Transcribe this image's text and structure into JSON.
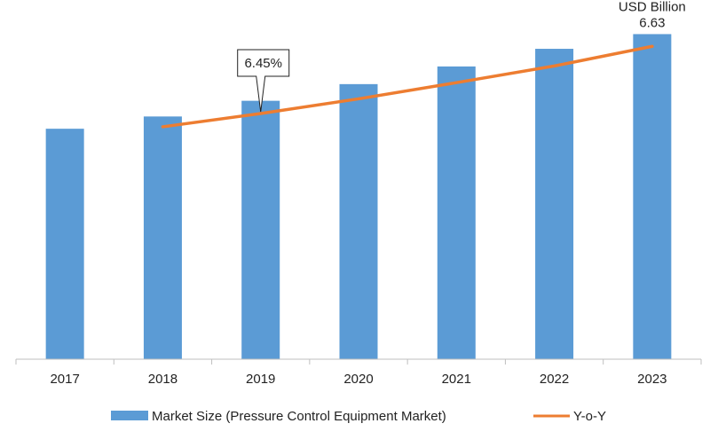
{
  "chart_data": {
    "type": "bar",
    "title": "",
    "xlabel": "",
    "ylabel": "",
    "unit_label": "USD Billion",
    "categories": [
      "2017",
      "2018",
      "2019",
      "2020",
      "2021",
      "2022",
      "2023"
    ],
    "series": [
      {
        "name": "Market Size (Pressure Control Equipment Market)",
        "type": "bar",
        "color": "#5b9bd5",
        "values": [
          4.7,
          4.95,
          5.27,
          5.61,
          5.97,
          6.33,
          6.63
        ]
      },
      {
        "name": "Y-o-Y",
        "type": "line",
        "color": "#ed7d31",
        "values": [
          null,
          4.74,
          5.01,
          5.31,
          5.64,
          5.98,
          6.38
        ]
      }
    ],
    "data_labels": [
      {
        "category": "2023",
        "text": "6.63"
      }
    ],
    "annotation": {
      "category": "2019",
      "text": "6.45%"
    },
    "ylim": [
      0,
      7.0
    ],
    "grid": false,
    "legend_position": "bottom"
  }
}
